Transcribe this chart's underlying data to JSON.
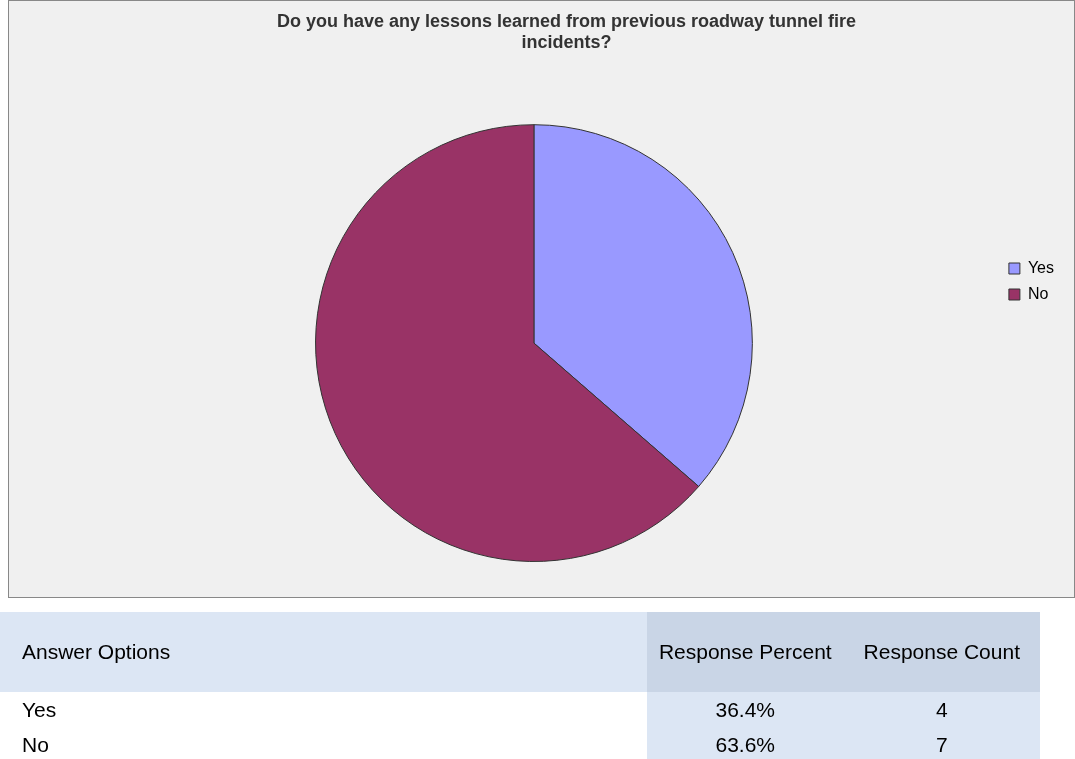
{
  "chart_data": {
    "type": "pie",
    "title": "Do you have any lessons learned from previous roadway tunnel fire incidents?",
    "categories": [
      "Yes",
      "No"
    ],
    "values": [
      36.4,
      63.6
    ],
    "colors": [
      "#9999ff",
      "#993366"
    ],
    "legend": "right",
    "annotations": [
      "Answer Options",
      "Response Percent",
      "Response Count",
      "36.4%",
      "63.6%",
      "4",
      "7"
    ]
  }
}
